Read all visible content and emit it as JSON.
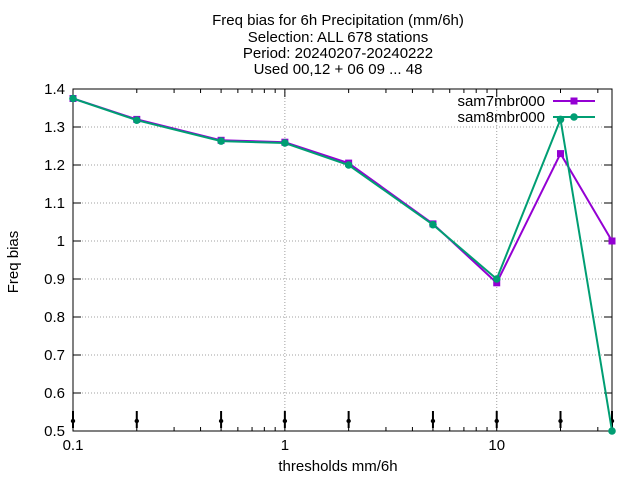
{
  "chart_data": {
    "type": "line",
    "title_lines": [
      "Freq bias  for 6h Precipitation (mm/6h)",
      "Selection: ALL    678 stations",
      "Period: 20240207-20240222",
      "Used 00,12 + 06 09 ... 48"
    ],
    "xlabel": "thresholds mm/6h",
    "ylabel": "Freq bias",
    "xscale": "log",
    "xlim": [
      0.1,
      35
    ],
    "ylim": [
      0.5,
      1.4
    ],
    "x_ticks": [
      {
        "value": 0.1,
        "label": "0.1"
      },
      {
        "value": 1,
        "label": "1"
      },
      {
        "value": 10,
        "label": "10"
      }
    ],
    "y_ticks": [
      {
        "value": 0.5,
        "label": "0.5"
      },
      {
        "value": 0.6,
        "label": "0.6"
      },
      {
        "value": 0.7,
        "label": "0.7"
      },
      {
        "value": 0.8,
        "label": "0.8"
      },
      {
        "value": 0.9,
        "label": "0.9"
      },
      {
        "value": 1.0,
        "label": "1"
      },
      {
        "value": 1.1,
        "label": "1.1"
      },
      {
        "value": 1.2,
        "label": "1.2"
      },
      {
        "value": 1.3,
        "label": "1.3"
      },
      {
        "value": 1.4,
        "label": "1.4"
      }
    ],
    "grid": true,
    "legend_position": "top-right",
    "x": [
      0.1,
      0.2,
      0.5,
      1,
      2,
      5,
      10,
      20,
      35
    ],
    "series": [
      {
        "name": "sam7mbr000",
        "color": "#9400d3",
        "marker": "filled-square",
        "values": [
          1.375,
          1.32,
          1.265,
          1.26,
          1.205,
          1.045,
          0.89,
          1.23,
          1.0
        ]
      },
      {
        "name": "sam8mbr000",
        "color": "#009e73",
        "marker": "filled-circle",
        "values": [
          1.375,
          1.318,
          1.263,
          1.258,
          1.2,
          1.043,
          0.9,
          1.32,
          0.5
        ]
      }
    ],
    "sample_markers_x": [
      0.1,
      0.2,
      0.5,
      1,
      2,
      5,
      10,
      20,
      35
    ]
  }
}
